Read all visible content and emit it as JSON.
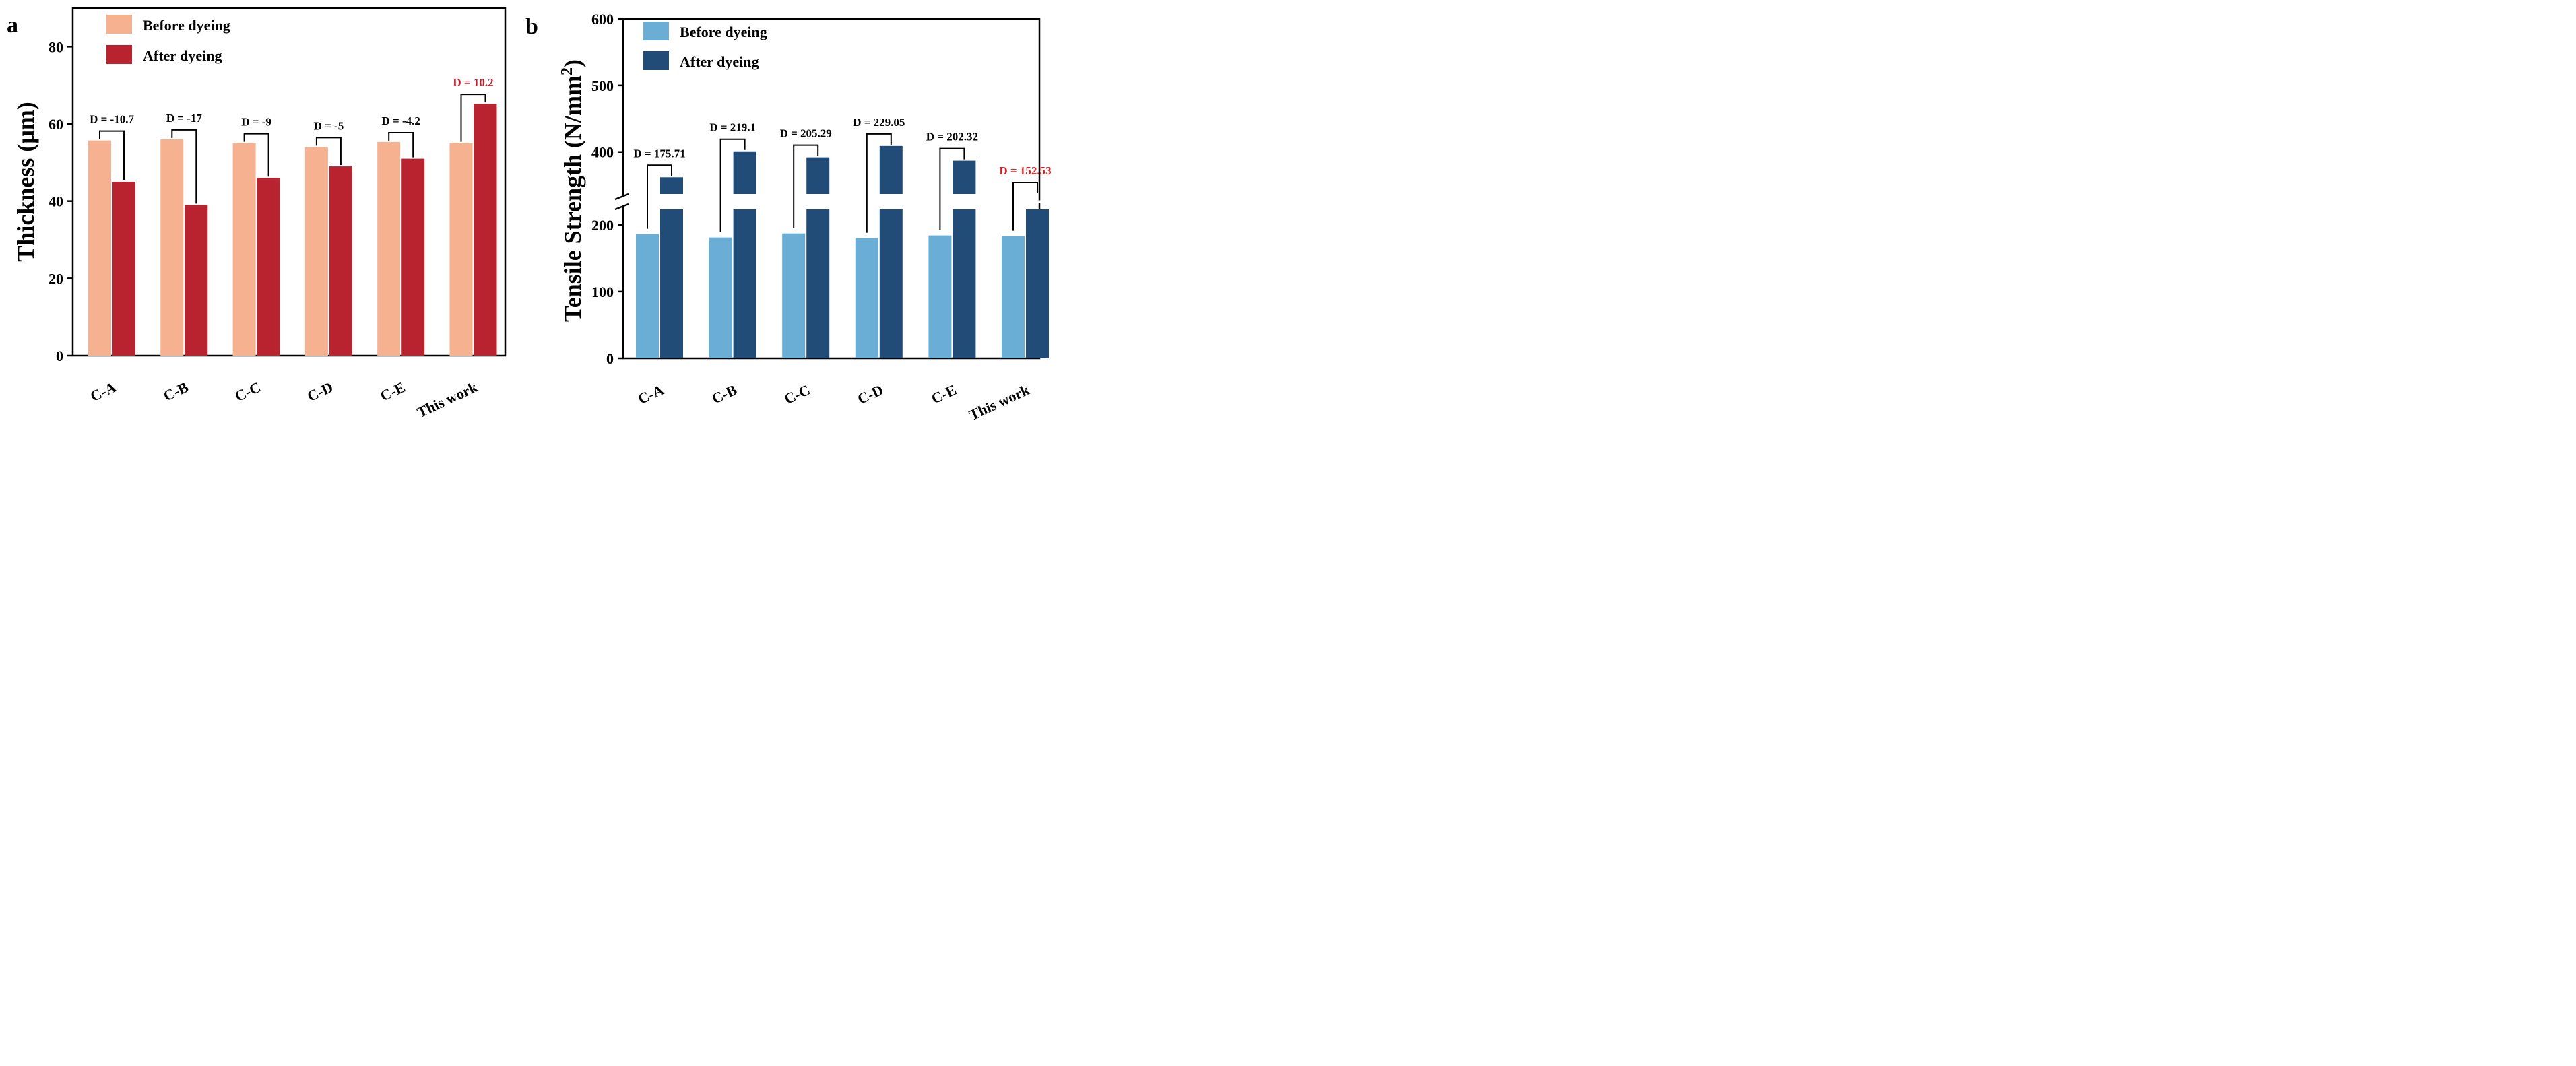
{
  "chart_data": [
    {
      "type": "bar",
      "panel_label": "a",
      "ylabel": "Thickness (μm)",
      "ylim": [
        0,
        90
      ],
      "yticks": [
        0,
        20,
        40,
        60,
        80
      ],
      "categories": [
        "C-A",
        "C-B",
        "C-C",
        "C-D",
        "C-E",
        "This work"
      ],
      "series": [
        {
          "name": "Before dyeing",
          "color": "#f5b190",
          "values": [
            55.7,
            56.0,
            55.0,
            54.0,
            55.3,
            55.0
          ]
        },
        {
          "name": "After dyeing",
          "color": "#b8232f",
          "values": [
            45.0,
            39.0,
            46.0,
            49.0,
            51.0,
            65.2
          ]
        }
      ],
      "annotations": [
        {
          "text": "D = -10.7",
          "color": "#000000"
        },
        {
          "text": "D = -17",
          "color": "#000000"
        },
        {
          "text": "D = -9",
          "color": "#000000"
        },
        {
          "text": "D = -5",
          "color": "#000000"
        },
        {
          "text": "D = -4.2",
          "color": "#000000"
        },
        {
          "text": "D = 10.2",
          "color": "#c0202e"
        }
      ],
      "legend_position": "top-left"
    },
    {
      "type": "bar",
      "panel_label": "b",
      "ylabel": "Tensile Strength (N/mm",
      "ylabel_sup": "2",
      "ylabel_end": ")",
      "ylim": [
        0,
        600
      ],
      "axis_break": [
        225,
        335
      ],
      "yticks": [
        0,
        100,
        200,
        400,
        500,
        600
      ],
      "categories": [
        "C-A",
        "C-B",
        "C-C",
        "C-D",
        "C-E",
        "This work"
      ],
      "series": [
        {
          "name": "Before dyeing",
          "color": "#6aaed6",
          "values": [
            186,
            181,
            187,
            180,
            184,
            183
          ]
        },
        {
          "name": "After dyeing",
          "color": "#224c78",
          "values": [
            362,
            401,
            392,
            409,
            387,
            336
          ]
        }
      ],
      "annotations": [
        {
          "text": "D = 175.71",
          "color": "#000000"
        },
        {
          "text": "D = 219.1",
          "color": "#000000"
        },
        {
          "text": "D = 205.29",
          "color": "#000000"
        },
        {
          "text": "D = 229.05",
          "color": "#000000"
        },
        {
          "text": "D = 202.32",
          "color": "#000000"
        },
        {
          "text": "D = 152.53",
          "color": "#e02020"
        }
      ],
      "legend_position": "top-left"
    }
  ]
}
